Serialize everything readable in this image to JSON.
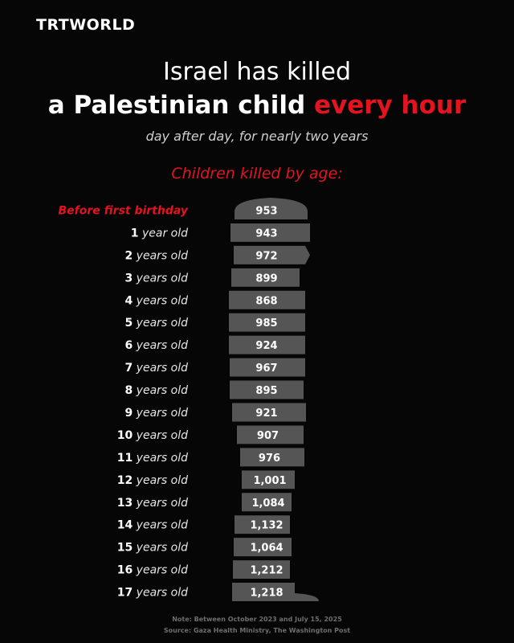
{
  "brand": {
    "logo_text": "TRTWORLD"
  },
  "header": {
    "line1": "Israel has killed",
    "line2_prefix": "a Palestinian child ",
    "line2_accent": "every hour",
    "subtitle": "day after day, for nearly two years"
  },
  "chart_title": "Children killed by age:",
  "colors": {
    "accent": "#e3141f",
    "silhouette": "#555555",
    "background": "#060606"
  },
  "chart_data": {
    "type": "bar",
    "title": "Children killed by age:",
    "categories": [
      "Before first birthday",
      "1 year old",
      "2 years old",
      "3 years old",
      "4 years old",
      "5 years old",
      "6 years old",
      "7 years old",
      "8 years old",
      "9 years old",
      "10 years old",
      "11 years old",
      "12 years old",
      "13 years old",
      "14 years old",
      "15 years old",
      "16 years old",
      "17 years old"
    ],
    "values": [
      953,
      943,
      972,
      899,
      868,
      985,
      924,
      967,
      895,
      921,
      907,
      976,
      1001,
      1084,
      1132,
      1064,
      1212,
      1218
    ],
    "value_labels": [
      "953",
      "943",
      "972",
      "899",
      "868",
      "985",
      "924",
      "967",
      "895",
      "921",
      "907",
      "976",
      "1,001",
      "1,084",
      "1,132",
      "1,064",
      "1,212",
      "1,218"
    ],
    "label_parts": [
      {
        "num": "Before first birthday",
        "rest": ""
      },
      {
        "num": "1",
        "rest": " year old"
      },
      {
        "num": "2",
        "rest": " years old"
      },
      {
        "num": "3",
        "rest": " years old"
      },
      {
        "num": "4",
        "rest": " years old"
      },
      {
        "num": "5",
        "rest": " years old"
      },
      {
        "num": "6",
        "rest": " years old"
      },
      {
        "num": "7",
        "rest": " years old"
      },
      {
        "num": "8",
        "rest": " years old"
      },
      {
        "num": "9",
        "rest": " years old"
      },
      {
        "num": "10",
        "rest": " years old"
      },
      {
        "num": "11",
        "rest": " years old"
      },
      {
        "num": "12",
        "rest": " years old"
      },
      {
        "num": "13",
        "rest": " years old"
      },
      {
        "num": "14",
        "rest": " years old"
      },
      {
        "num": "15",
        "rest": " years old"
      },
      {
        "num": "16",
        "rest": " years old"
      },
      {
        "num": "17",
        "rest": " years old"
      }
    ],
    "highlight_category": "Before first birthday"
  },
  "footer": {
    "note": "Note: Between October 2023 and July 15, 2025",
    "source": "Source: Gaza Health Ministry, The Washington Post"
  }
}
